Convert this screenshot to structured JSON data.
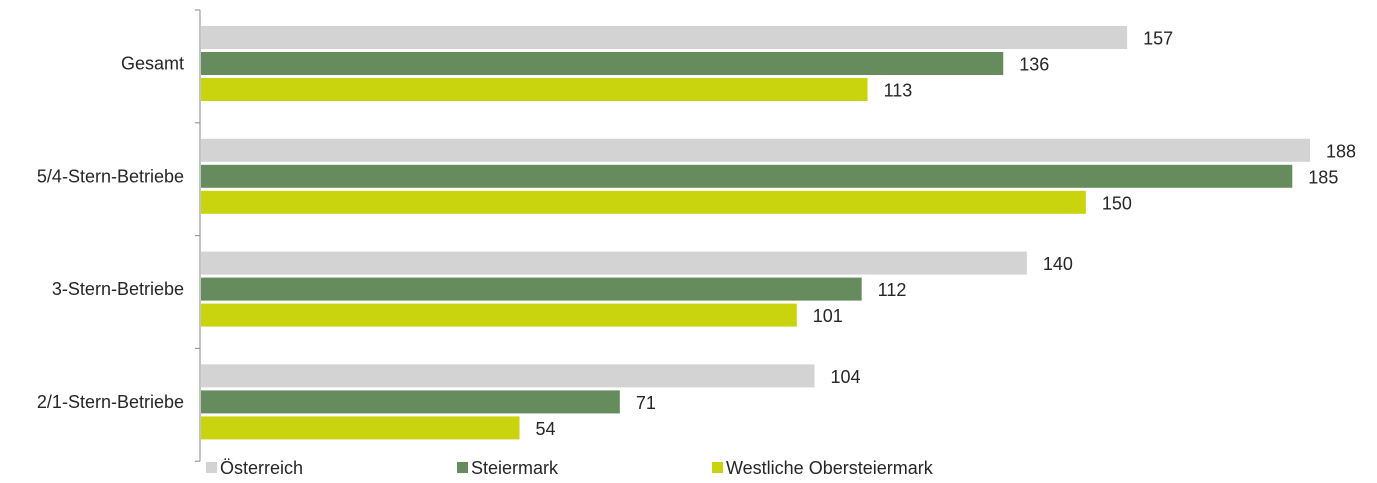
{
  "chart_data": {
    "type": "bar",
    "orientation": "horizontal",
    "title": "",
    "xlabel": "",
    "ylabel": "",
    "categories": [
      "Gesamt",
      "5/4-Stern-Betriebe",
      "3-Stern-Betriebe",
      "2/1-Stern-Betriebe"
    ],
    "series": [
      {
        "name": "Österreich",
        "color": "#d3d3d3",
        "values": [
          157,
          188,
          140,
          104
        ]
      },
      {
        "name": "Steiermark",
        "color": "#668c5e",
        "values": [
          136,
          185,
          112,
          71
        ]
      },
      {
        "name": "Westliche Obersteiermark",
        "color": "#c9d40f",
        "values": [
          113,
          150,
          101,
          54
        ]
      }
    ],
    "xlim": [
      0,
      188
    ],
    "grid": false,
    "legend": "bottom"
  }
}
